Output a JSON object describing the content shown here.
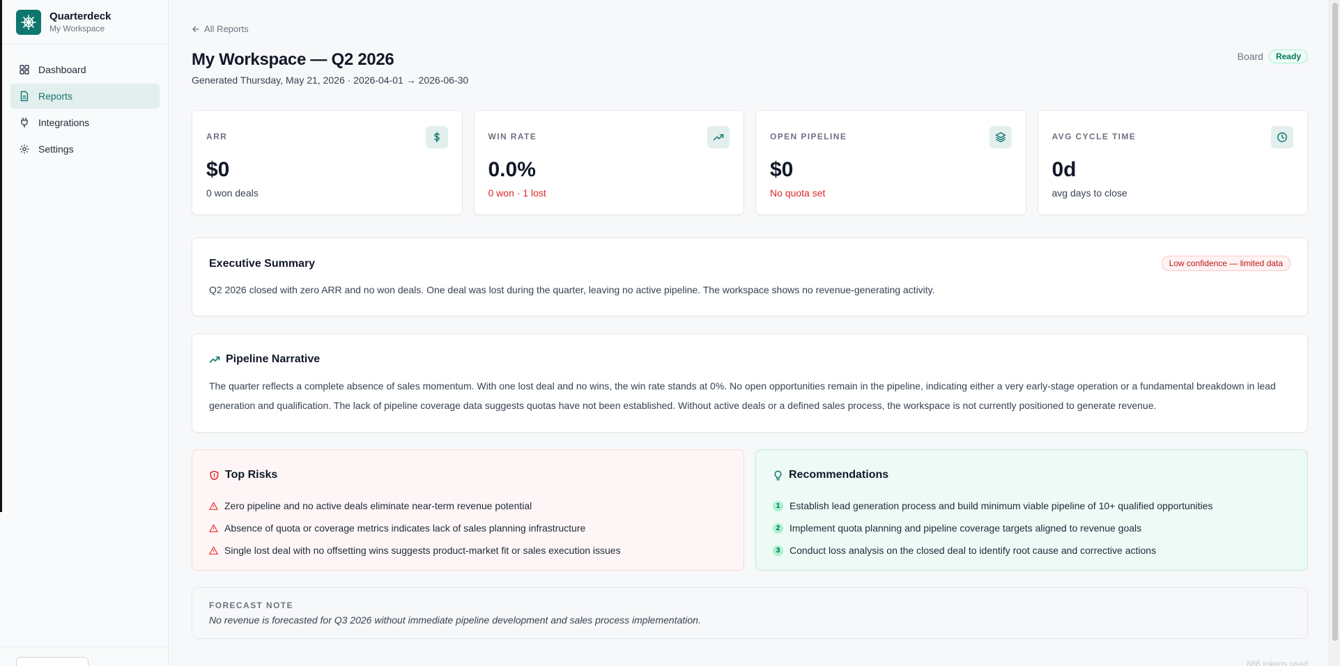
{
  "brand": {
    "title": "Quarterdeck",
    "subtitle": "My Workspace"
  },
  "sidebar": {
    "items": [
      {
        "label": "Dashboard",
        "icon": "dashboard-icon"
      },
      {
        "label": "Reports",
        "icon": "report-icon",
        "active": true
      },
      {
        "label": "Integrations",
        "icon": "plug-icon"
      },
      {
        "label": "Settings",
        "icon": "gear-icon"
      }
    ]
  },
  "header": {
    "back_label": "All Reports",
    "title": "My Workspace — Q2 2026",
    "subtitle": "Generated Thursday, May 21, 2026 · 2026-04-01 → 2026-06-30",
    "board_label": "Board",
    "status": "Ready"
  },
  "metrics": [
    {
      "label": "ARR",
      "value": "$0",
      "sub": "0 won deals",
      "icon": "dollar-icon",
      "sub_negative": false
    },
    {
      "label": "WIN RATE",
      "value": "0.0%",
      "sub": "0 won · 1 lost",
      "icon": "trending-up-icon",
      "sub_negative": true
    },
    {
      "label": "OPEN PIPELINE",
      "value": "$0",
      "sub": "No quota set",
      "icon": "layers-icon",
      "sub_negative": true
    },
    {
      "label": "AVG CYCLE TIME",
      "value": "0d",
      "sub": "avg days to close",
      "icon": "clock-icon",
      "sub_negative": false
    }
  ],
  "executive_summary": {
    "title": "Executive Summary",
    "badge": "Low confidence — limited data",
    "text": "Q2 2026 closed with zero ARR and no won deals. One deal was lost during the quarter, leaving no active pipeline. The workspace shows no revenue-generating activity."
  },
  "pipeline_narrative": {
    "title": "Pipeline Narrative",
    "text": "The quarter reflects a complete absence of sales momentum. With one lost deal and no wins, the win rate stands at 0%. No open opportunities remain in the pipeline, indicating either a very early-stage operation or a fundamental breakdown in lead generation and qualification. The lack of pipeline coverage data suggests quotas have not been established. Without active deals or a defined sales process, the workspace is not currently positioned to generate revenue."
  },
  "top_risks": {
    "title": "Top Risks",
    "items": [
      "Zero pipeline and no active deals eliminate near-term revenue potential",
      "Absence of quota or coverage metrics indicates lack of sales planning infrastructure",
      "Single lost deal with no offsetting wins suggests product-market fit or sales execution issues"
    ]
  },
  "recommendations": {
    "title": "Recommendations",
    "items": [
      {
        "n": "1",
        "text": "Establish lead generation process and build minimum viable pipeline of 10+ qualified opportunities"
      },
      {
        "n": "2",
        "text": "Implement quota planning and pipeline coverage targets aligned to revenue goals"
      },
      {
        "n": "3",
        "text": "Conduct loss analysis on the closed deal to identify root cause and corrective actions"
      }
    ]
  },
  "forecast": {
    "label": "FORECAST NOTE",
    "text": "No revenue is forecasted for Q3 2026 without immediate pipeline development and sales process implementation."
  },
  "footer": {
    "tokens": "886 tokens used"
  },
  "colors": {
    "accent": "#0f766e",
    "negative": "#dc2626",
    "ready": "#047857"
  }
}
